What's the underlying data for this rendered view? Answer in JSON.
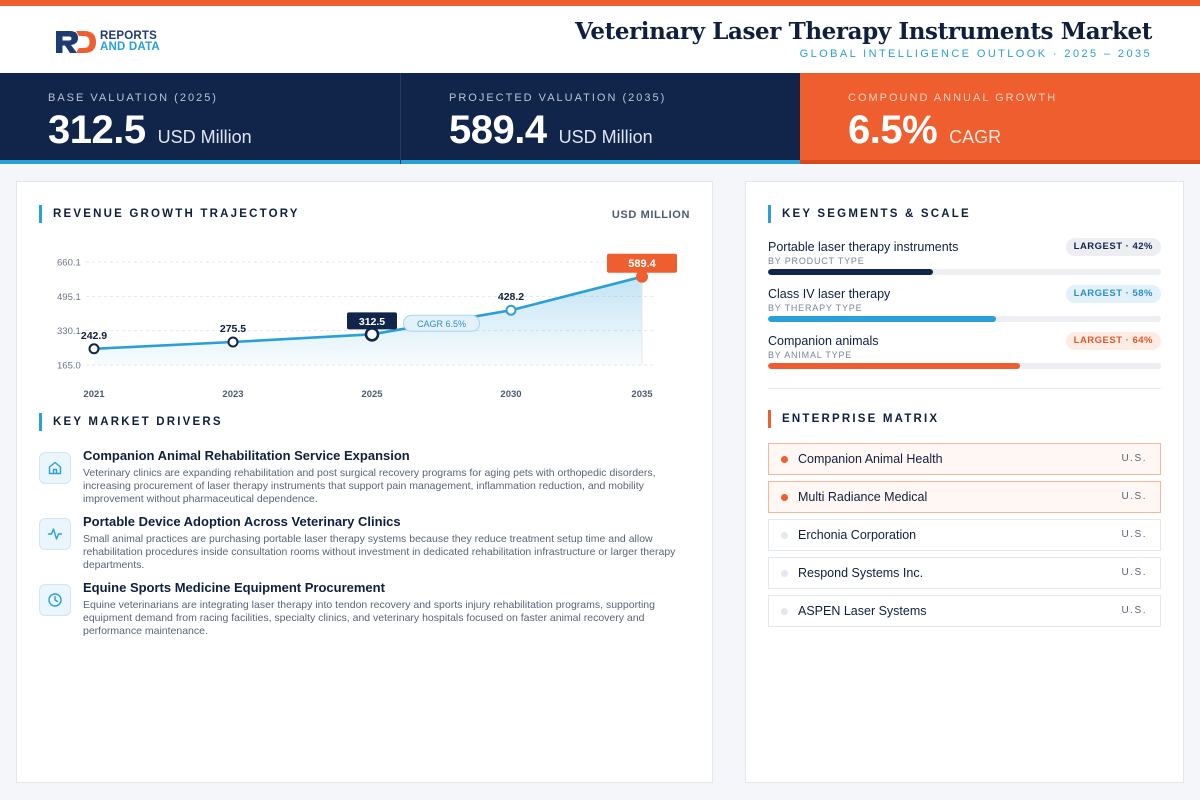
{
  "brand": {
    "line1": "REPORTS",
    "line2": "AND DATA"
  },
  "header": {
    "title": "Veterinary Laser Therapy Instruments Market",
    "subtitle": "GLOBAL INTELLIGENCE OUTLOOK  ·  2025 – 2035"
  },
  "stats": [
    {
      "label": "BASE VALUATION (2025)",
      "value": "312.5",
      "unit": "USD Million"
    },
    {
      "label": "PROJECTED VALUATION (2035)",
      "value": "589.4",
      "unit": "USD Million"
    },
    {
      "label": "COMPOUND ANNUAL GROWTH",
      "value": "6.5%",
      "unit": "CAGR"
    }
  ],
  "chart_section": {
    "title": "REVENUE GROWTH TRAJECTORY",
    "unit": "USD MILLION"
  },
  "chart_data": {
    "type": "line",
    "x": [
      "2021",
      "2023",
      "2025",
      "2030",
      "2035"
    ],
    "values": [
      242.9,
      275.5,
      312.5,
      428.2,
      589.4
    ],
    "labels": [
      "242.9",
      "275.5",
      "312.5",
      "428.2",
      "589.4"
    ],
    "yticks": [
      "165.0",
      "330.1",
      "495.1",
      "660.1"
    ],
    "ytick_values": [
      165.0,
      330.1,
      495.1,
      660.1
    ],
    "ylim": [
      165.0,
      660.1
    ],
    "annotation": "CAGR 6.5%",
    "grid": true,
    "colors": {
      "line": "#2a9fd8",
      "highlight": "#11244a",
      "end": "#ee5e2e"
    }
  },
  "drivers_section": {
    "title": "KEY MARKET DRIVERS"
  },
  "drivers": [
    {
      "icon": "home-icon",
      "title": "Companion Animal Rehabilitation Service Expansion",
      "desc": "Veterinary clinics are expanding rehabilitation and post surgical recovery programs for aging pets with orthopedic disorders, increasing procurement of laser therapy instruments that support pain management, inflammation reduction, and mobility improvement without pharmaceutical dependence."
    },
    {
      "icon": "activity-icon",
      "title": "Portable Device Adoption Across Veterinary Clinics",
      "desc": "Small animal practices are purchasing portable laser therapy systems because they reduce treatment setup time and allow rehabilitation procedures inside consultation rooms without investment in dedicated rehabilitation infrastructure or larger therapy departments."
    },
    {
      "icon": "clock-icon",
      "title": "Equine Sports Medicine Equipment Procurement",
      "desc": "Equine veterinarians are integrating laser therapy into tendon recovery and sports injury rehabilitation programs, supporting equipment demand from racing facilities, specialty clinics, and veterinary hospitals focused on faster animal recovery and performance maintenance."
    }
  ],
  "segments_section": {
    "title": "KEY SEGMENTS & SCALE"
  },
  "segments": [
    {
      "name": "Portable laser therapy instruments",
      "sub": "BY PRODUCT TYPE",
      "badge": "LARGEST · 42%",
      "share": 42,
      "color": "#11244a"
    },
    {
      "name": "Class IV laser therapy",
      "sub": "BY THERAPY TYPE",
      "badge": "LARGEST · 58%",
      "share": 58,
      "color": "#2a9fd8"
    },
    {
      "name": "Companion animals",
      "sub": "BY ANIMAL TYPE",
      "badge": "LARGEST · 64%",
      "share": 64,
      "color": "#ee5e2e"
    }
  ],
  "matrix_section": {
    "title": "ENTERPRISE MATRIX"
  },
  "companies": [
    {
      "name": "Companion Animal Health",
      "country": "U.S."
    },
    {
      "name": "Multi Radiance Medical",
      "country": "U.S."
    },
    {
      "name": "Erchonia Corporation",
      "country": "U.S."
    },
    {
      "name": "Respond Systems Inc.",
      "country": "U.S."
    },
    {
      "name": "ASPEN Laser Systems",
      "country": "U.S."
    }
  ]
}
